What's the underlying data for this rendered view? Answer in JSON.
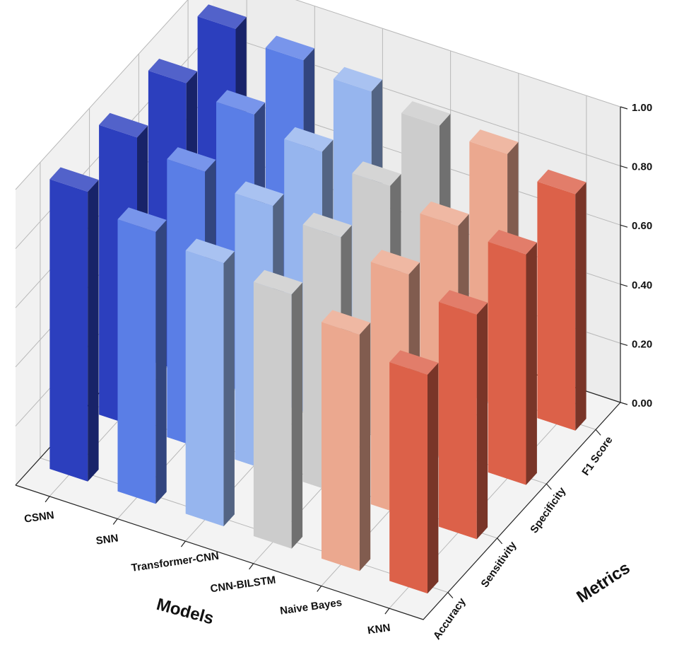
{
  "chart_data": {
    "type": "bar3d",
    "title": "",
    "x_axis_label": "Models",
    "y_axis_label": "Metrics",
    "z_axis_label": "",
    "models": [
      "CSNN",
      "SNN",
      "Transformer-CNN",
      "CNN-BILSTM",
      "Naive Bayes",
      "KNN"
    ],
    "metrics": [
      "Accuracy",
      "Sensitivity",
      "Specificity",
      "F1 Score"
    ],
    "z_ticks": [
      "0.00",
      "0.20",
      "0.40",
      "0.60",
      "0.80",
      "1.00"
    ],
    "zlim": [
      0,
      1
    ],
    "grid": true,
    "colormap": "coolwarm",
    "values": {
      "Accuracy": [
        0.98,
        0.92,
        0.89,
        0.86,
        0.8,
        0.74
      ],
      "Sensitivity": [
        0.98,
        0.94,
        0.9,
        0.87,
        0.82,
        0.76
      ],
      "Specificity": [
        0.98,
        0.95,
        0.9,
        0.86,
        0.8,
        0.78
      ],
      "F1 Score": [
        0.98,
        0.95,
        0.92,
        0.88,
        0.86,
        0.8
      ]
    },
    "colors": [
      "#2c3fbe",
      "#5a7ee6",
      "#96b5ee",
      "#cccccc",
      "#eba88f",
      "#dc6149"
    ]
  }
}
